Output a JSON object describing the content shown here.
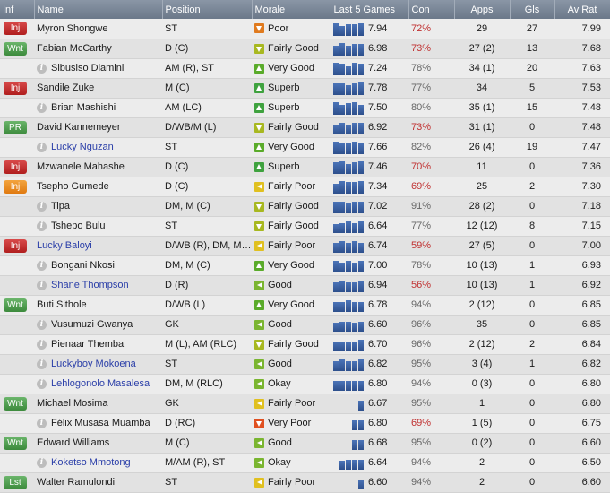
{
  "headers": {
    "inf": "Inf",
    "name": "Name",
    "position": "Position",
    "morale": "Morale",
    "last5": "Last 5 Games",
    "con": "Con",
    "apps": "Apps",
    "gls": "Gls",
    "avrat": "Av Rat"
  },
  "colors": {
    "poor": "#e07a1e",
    "fairly_good": "#a8b820",
    "very_good": "#5aab2a",
    "superb": "#3fa23f",
    "good": "#7ab530",
    "fairly_poor": "#e0c020",
    "very_poor": "#e05020",
    "con_low": "#c03030",
    "con_mid": "#666666",
    "link": "#2a3ea8"
  },
  "players": [
    {
      "inf": "Inj",
      "inf_style": "inj",
      "name": "Myron Shongwe",
      "link": false,
      "position": "ST",
      "morale": "Poor",
      "morale_key": "poor",
      "last5": [
        0.9,
        0.7,
        0.8,
        0.8,
        0.9
      ],
      "rating": "7.94",
      "con": "72%",
      "con_key": "con_low",
      "apps": "29",
      "gls": "27",
      "avrat": "7.99"
    },
    {
      "inf": "Wnt",
      "inf_style": "wnt",
      "name": "Fabian McCarthy",
      "link": false,
      "position": "D (C)",
      "morale": "Fairly Good",
      "morale_key": "fairly_good",
      "last5": [
        0.7,
        0.9,
        0.7,
        0.8,
        0.8
      ],
      "rating": "6.98",
      "con": "73%",
      "con_key": "con_low",
      "apps": "27 (2)",
      "gls": "13",
      "avrat": "7.68"
    },
    {
      "inf": "",
      "inf_style": "info",
      "name": "Sibusiso Dlamini",
      "link": false,
      "position": "AM (R), ST",
      "morale": "Very Good",
      "morale_key": "very_good",
      "last5": [
        0.9,
        0.8,
        0.6,
        0.9,
        0.8
      ],
      "rating": "7.24",
      "con": "78%",
      "con_key": "con_mid",
      "apps": "34 (1)",
      "gls": "20",
      "avrat": "7.63"
    },
    {
      "inf": "Inj",
      "inf_style": "inj",
      "name": "Sandile Zuke",
      "link": false,
      "position": "M (C)",
      "morale": "Superb",
      "morale_key": "superb",
      "last5": [
        0.8,
        0.8,
        0.7,
        0.8,
        0.9
      ],
      "rating": "7.78",
      "con": "77%",
      "con_key": "con_mid",
      "apps": "34",
      "gls": "5",
      "avrat": "7.53"
    },
    {
      "inf": "",
      "inf_style": "info",
      "name": "Brian Mashishi",
      "link": false,
      "position": "AM (LC)",
      "morale": "Superb",
      "morale_key": "superb",
      "last5": [
        0.9,
        0.7,
        0.8,
        0.9,
        0.7
      ],
      "rating": "7.50",
      "con": "80%",
      "con_key": "con_mid",
      "apps": "35 (1)",
      "gls": "15",
      "avrat": "7.48"
    },
    {
      "inf": "PR",
      "inf_style": "pr",
      "name": "David Kannemeyer",
      "link": false,
      "position": "D/WB/M (L)",
      "morale": "Fairly Good",
      "morale_key": "fairly_good",
      "last5": [
        0.7,
        0.8,
        0.7,
        0.8,
        0.8
      ],
      "rating": "6.92",
      "con": "73%",
      "con_key": "con_low",
      "apps": "31 (1)",
      "gls": "0",
      "avrat": "7.48"
    },
    {
      "inf": "",
      "inf_style": "info",
      "name": "Lucky Nguzan",
      "link": true,
      "position": "ST",
      "morale": "Very Good",
      "morale_key": "very_good",
      "last5": [
        0.9,
        0.8,
        0.8,
        0.9,
        0.8
      ],
      "rating": "7.66",
      "con": "82%",
      "con_key": "con_mid",
      "apps": "26 (4)",
      "gls": "19",
      "avrat": "7.47"
    },
    {
      "inf": "Inj",
      "inf_style": "inj",
      "name": "Mzwanele Mahashe",
      "link": false,
      "position": "D (C)",
      "morale": "Superb",
      "morale_key": "superb",
      "last5": [
        0.8,
        0.9,
        0.7,
        0.8,
        0.9
      ],
      "rating": "7.46",
      "con": "70%",
      "con_key": "con_low",
      "apps": "11",
      "gls": "0",
      "avrat": "7.36"
    },
    {
      "inf": "Inj",
      "inf_style": "inj-o",
      "name": "Tsepho Gumede",
      "link": false,
      "position": "D (C)",
      "morale": "Fairly Poor",
      "morale_key": "fairly_poor",
      "last5": [
        0.7,
        0.9,
        0.8,
        0.8,
        0.9
      ],
      "rating": "7.34",
      "con": "69%",
      "con_key": "con_low",
      "apps": "25",
      "gls": "2",
      "avrat": "7.30"
    },
    {
      "inf": "",
      "inf_style": "info",
      "name": "Tipa",
      "link": false,
      "position": "DM, M (C)",
      "morale": "Fairly Good",
      "morale_key": "fairly_good",
      "last5": [
        0.8,
        0.8,
        0.7,
        0.8,
        0.8
      ],
      "rating": "7.02",
      "con": "91%",
      "con_key": "con_mid",
      "apps": "28 (2)",
      "gls": "0",
      "avrat": "7.18"
    },
    {
      "inf": "",
      "inf_style": "info",
      "name": "Tshepo Bulu",
      "link": false,
      "position": "ST",
      "morale": "Fairly Good",
      "morale_key": "fairly_good",
      "last5": [
        0.6,
        0.7,
        0.8,
        0.7,
        0.8
      ],
      "rating": "6.64",
      "con": "77%",
      "con_key": "con_mid",
      "apps": "12 (12)",
      "gls": "8",
      "avrat": "7.15"
    },
    {
      "inf": "Inj",
      "inf_style": "inj",
      "name": "Lucky Baloyi",
      "link": true,
      "position": "D/WB (R), DM, M ...",
      "morale": "Fairly Poor",
      "morale_key": "fairly_poor",
      "last5": [
        0.7,
        0.8,
        0.7,
        0.8,
        0.7
      ],
      "rating": "6.74",
      "con": "59%",
      "con_key": "con_low",
      "apps": "27 (5)",
      "gls": "0",
      "avrat": "7.00"
    },
    {
      "inf": "",
      "inf_style": "info",
      "name": "Bongani Nkosi",
      "link": false,
      "position": "DM, M (C)",
      "morale": "Very Good",
      "morale_key": "very_good",
      "last5": [
        0.8,
        0.7,
        0.8,
        0.7,
        0.8
      ],
      "rating": "7.00",
      "con": "78%",
      "con_key": "con_mid",
      "apps": "10 (13)",
      "gls": "1",
      "avrat": "6.93"
    },
    {
      "inf": "",
      "inf_style": "info",
      "name": "Shane Thompson",
      "link": true,
      "position": "D (R)",
      "morale": "Good",
      "morale_key": "good",
      "last5": [
        0.7,
        0.8,
        0.7,
        0.7,
        0.8
      ],
      "rating": "6.94",
      "con": "56%",
      "con_key": "con_low",
      "apps": "10 (13)",
      "gls": "1",
      "avrat": "6.92"
    },
    {
      "inf": "Wnt",
      "inf_style": "wnt",
      "name": "Buti Sithole",
      "link": false,
      "position": "D/WB (L)",
      "morale": "Very Good",
      "morale_key": "very_good",
      "last5": [
        0.7,
        0.7,
        0.8,
        0.7,
        0.7
      ],
      "rating": "6.78",
      "con": "94%",
      "con_key": "con_mid",
      "apps": "2 (12)",
      "gls": "0",
      "avrat": "6.85"
    },
    {
      "inf": "",
      "inf_style": "info",
      "name": "Vusumuzi Gwanya",
      "link": false,
      "position": "GK",
      "morale": "Good",
      "morale_key": "good",
      "last5": [
        0.6,
        0.7,
        0.7,
        0.6,
        0.7
      ],
      "rating": "6.60",
      "con": "96%",
      "con_key": "con_mid",
      "apps": "35",
      "gls": "0",
      "avrat": "6.85"
    },
    {
      "inf": "",
      "inf_style": "info",
      "name": "Pienaar Themba",
      "link": false,
      "position": "M (L), AM (RLC)",
      "morale": "Fairly Good",
      "morale_key": "fairly_good",
      "last5": [
        0.7,
        0.7,
        0.6,
        0.7,
        0.8
      ],
      "rating": "6.70",
      "con": "96%",
      "con_key": "con_mid",
      "apps": "2 (12)",
      "gls": "2",
      "avrat": "6.84"
    },
    {
      "inf": "",
      "inf_style": "info",
      "name": "Luckyboy Mokoena",
      "link": true,
      "position": "ST",
      "morale": "Good",
      "morale_key": "good",
      "last5": [
        0.7,
        0.8,
        0.7,
        0.7,
        0.8
      ],
      "rating": "6.82",
      "con": "95%",
      "con_key": "con_mid",
      "apps": "3 (4)",
      "gls": "1",
      "avrat": "6.82"
    },
    {
      "inf": "",
      "inf_style": "info",
      "name": "Lehlogonolo Masalesa",
      "link": true,
      "position": "DM, M (RLC)",
      "morale": "Okay",
      "morale_key": "good",
      "last5": [
        0.7,
        0.7,
        0.7,
        0.7,
        0.7
      ],
      "rating": "6.80",
      "con": "94%",
      "con_key": "con_mid",
      "apps": "0 (3)",
      "gls": "0",
      "avrat": "6.80"
    },
    {
      "inf": "Wnt",
      "inf_style": "wnt",
      "name": "Michael Mosima",
      "link": false,
      "position": "GK",
      "morale": "Fairly Poor",
      "morale_key": "fairly_poor",
      "last5": [
        0,
        0,
        0,
        0,
        0.7
      ],
      "rating": "6.67",
      "con": "95%",
      "con_key": "con_mid",
      "apps": "1",
      "gls": "0",
      "avrat": "6.80"
    },
    {
      "inf": "",
      "inf_style": "info",
      "name": "Félix Musasa Muamba",
      "link": false,
      "position": "D (RC)",
      "morale": "Very Poor",
      "morale_key": "very_poor",
      "last5": [
        0,
        0,
        0,
        0.7,
        0.7
      ],
      "rating": "6.80",
      "con": "69%",
      "con_key": "con_low",
      "apps": "1 (5)",
      "gls": "0",
      "avrat": "6.75"
    },
    {
      "inf": "Wnt",
      "inf_style": "wnt",
      "name": "Edward Williams",
      "link": false,
      "position": "M (C)",
      "morale": "Good",
      "morale_key": "good",
      "last5": [
        0,
        0,
        0,
        0.7,
        0.7
      ],
      "rating": "6.68",
      "con": "95%",
      "con_key": "con_mid",
      "apps": "0 (2)",
      "gls": "0",
      "avrat": "6.60"
    },
    {
      "inf": "",
      "inf_style": "info",
      "name": "Koketso Mmotong",
      "link": true,
      "position": "M/AM (R), ST",
      "morale": "Okay",
      "morale_key": "good",
      "last5": [
        0,
        0.6,
        0.7,
        0.7,
        0.7
      ],
      "rating": "6.64",
      "con": "94%",
      "con_key": "con_mid",
      "apps": "2",
      "gls": "0",
      "avrat": "6.50"
    },
    {
      "inf": "Lst",
      "inf_style": "lst",
      "name": "Walter Ramulondi",
      "link": false,
      "position": "ST",
      "morale": "Fairly Poor",
      "morale_key": "fairly_poor",
      "last5": [
        0,
        0,
        0,
        0,
        0.7
      ],
      "rating": "6.60",
      "con": "94%",
      "con_key": "con_mid",
      "apps": "2",
      "gls": "0",
      "avrat": "6.60"
    }
  ]
}
